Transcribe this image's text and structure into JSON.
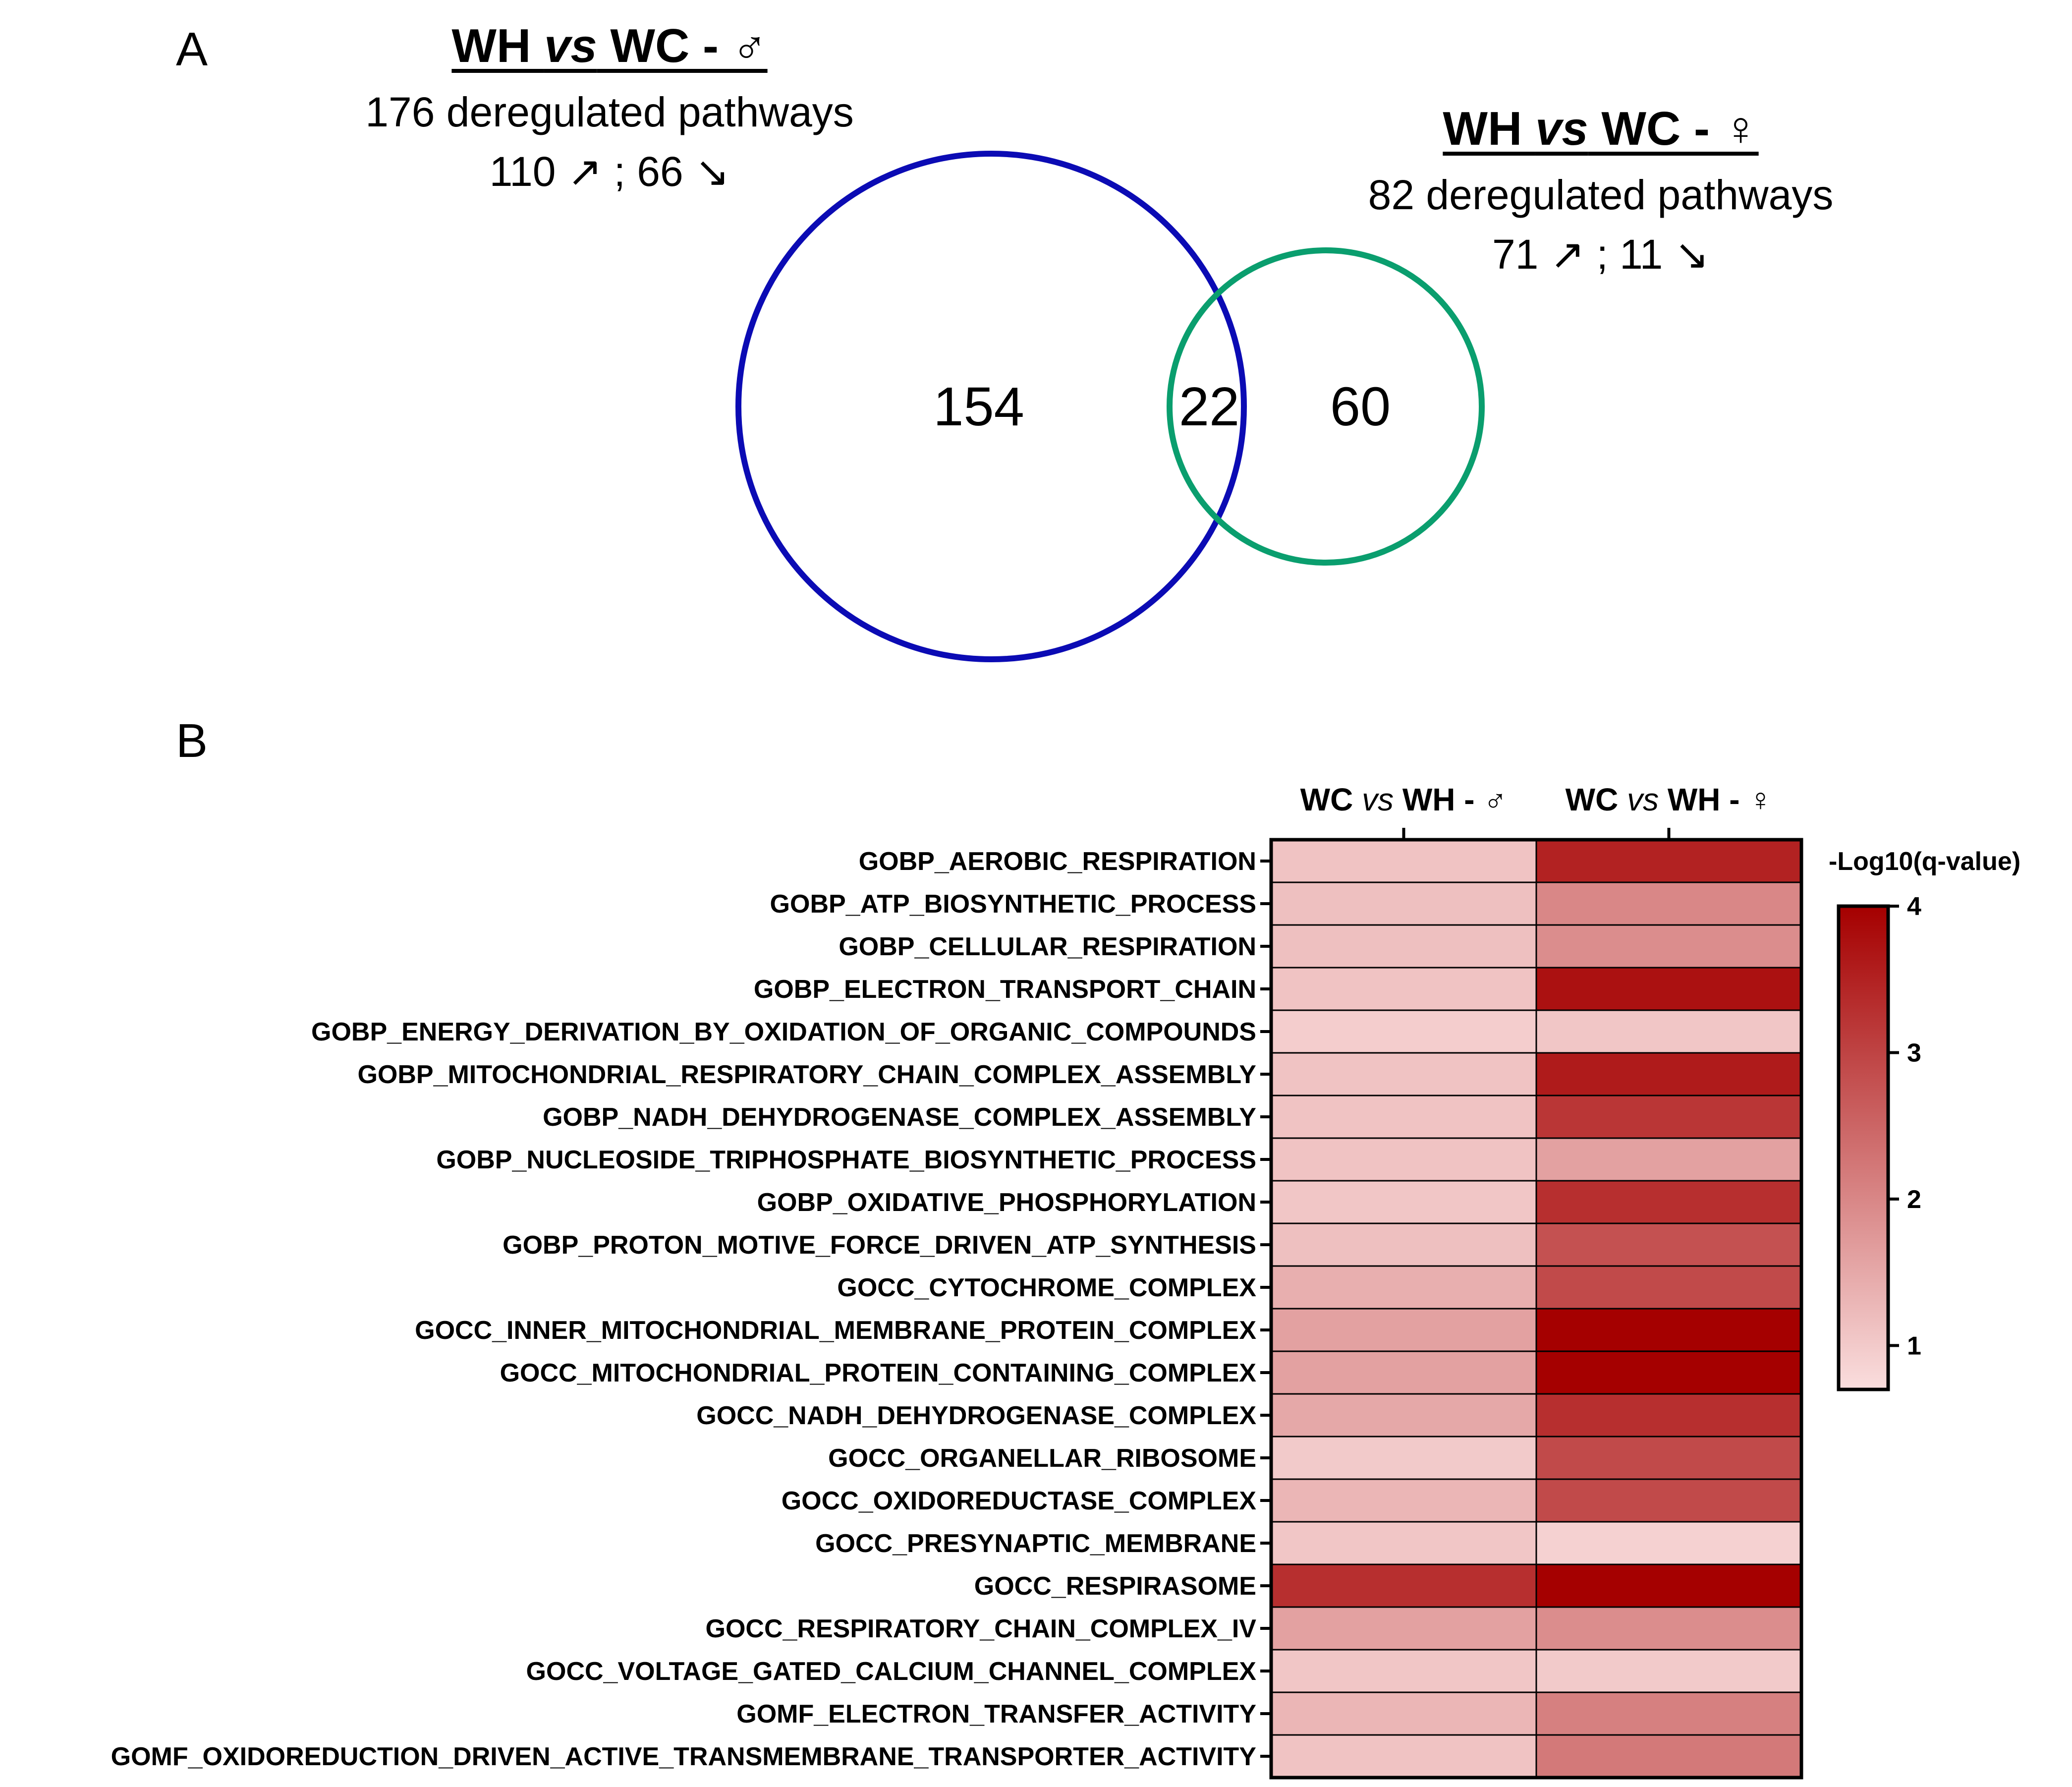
{
  "panel_labels": {
    "a": "A",
    "b": "B"
  },
  "venn": {
    "male": {
      "title_pre": "WH ",
      "title_vs": "vs",
      "title_post": " WC - ♂",
      "total_label": "176 deregulated pathways",
      "split_label": "110 ↗ ; 66 ↘",
      "only_count": "154",
      "color": "#0b0bb4"
    },
    "female": {
      "title_pre": "WH ",
      "title_vs": "vs",
      "title_post": " WC - ♀",
      "total_label": "82 deregulated pathways",
      "split_label": "71 ↗ ; 11 ↘",
      "only_count": "60",
      "color": "#0a9e6e"
    },
    "overlap_count": "22"
  },
  "chart_data": {
    "type": "heatmap",
    "columns": [
      {
        "pre": "WC ",
        "vs": "vs",
        "post": " WH - ♂"
      },
      {
        "pre": "WC ",
        "vs": "vs",
        "post": " WH - ♀"
      }
    ],
    "rows": [
      "GOBP_AEROBIC_RESPIRATION",
      "GOBP_ATP_BIOSYNTHETIC_PROCESS",
      "GOBP_CELLULAR_RESPIRATION",
      "GOBP_ELECTRON_TRANSPORT_CHAIN",
      "GOBP_ENERGY_DERIVATION_BY_OXIDATION_OF_ORGANIC_COMPOUNDS",
      "GOBP_MITOCHONDRIAL_RESPIRATORY_CHAIN_COMPLEX_ASSEMBLY",
      "GOBP_NADH_DEHYDROGENASE_COMPLEX_ASSEMBLY",
      "GOBP_NUCLEOSIDE_TRIPHOSPHATE_BIOSYNTHETIC_PROCESS",
      "GOBP_OXIDATIVE_PHOSPHORYLATION",
      "GOBP_PROTON_MOTIVE_FORCE_DRIVEN_ATP_SYNTHESIS",
      "GOCC_CYTOCHROME_COMPLEX",
      "GOCC_INNER_MITOCHONDRIAL_MEMBRANE_PROTEIN_COMPLEX",
      "GOCC_MITOCHONDRIAL_PROTEIN_CONTAINING_COMPLEX",
      "GOCC_NADH_DEHYDROGENASE_COMPLEX",
      "GOCC_ORGANELLAR_RIBOSOME",
      "GOCC_OXIDOREDUCTASE_COMPLEX",
      "GOCC_PRESYNAPTIC_MEMBRANE",
      "GOCC_RESPIRASOME",
      "GOCC_RESPIRATORY_CHAIN_COMPLEX_IV",
      "GOCC_VOLTAGE_GATED_CALCIUM_CHANNEL_COMPLEX",
      "GOMF_ELECTRON_TRANSFER_ACTIVITY",
      "GOMF_OXIDOREDUCTION_DRIVEN_ACTIVE_TRANSMEMBRANE_TRANSPORTER_ACTIVITY"
    ],
    "values": [
      [
        1.1,
        3.5
      ],
      [
        1.15,
        2.0
      ],
      [
        1.15,
        1.9
      ],
      [
        1.1,
        3.75
      ],
      [
        0.95,
        1.05
      ],
      [
        1.1,
        3.6
      ],
      [
        1.1,
        3.2
      ],
      [
        1.1,
        1.6
      ],
      [
        1.05,
        3.3
      ],
      [
        1.15,
        2.8
      ],
      [
        1.4,
        2.9
      ],
      [
        1.6,
        4.0
      ],
      [
        1.6,
        4.0
      ],
      [
        1.5,
        3.3
      ],
      [
        1.0,
        2.9
      ],
      [
        1.3,
        2.9
      ],
      [
        1.05,
        0.9
      ],
      [
        3.3,
        4.0
      ],
      [
        1.6,
        1.9
      ],
      [
        1.05,
        1.0
      ],
      [
        1.3,
        2.1
      ],
      [
        1.1,
        2.2
      ]
    ],
    "colorbar": {
      "title": "-Log10(q-value)",
      "range": [
        0.7,
        4
      ],
      "ticks": [
        1,
        2,
        3,
        4
      ],
      "low_color": "#fadede",
      "high_color": "#a50000"
    }
  }
}
